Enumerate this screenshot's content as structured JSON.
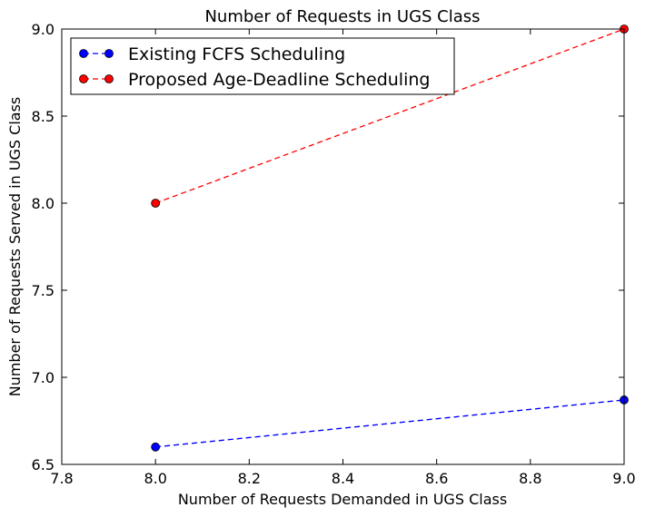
{
  "chart_data": {
    "type": "line",
    "title": "Number of Requests in UGS Class",
    "xlabel": "Number of Requests Demanded in UGS Class",
    "ylabel": "Number of Requests Served in UGS Class",
    "xlim": [
      7.8,
      9.0
    ],
    "ylim": [
      6.5,
      9.0
    ],
    "x_ticks": [
      "7.8",
      "8.0",
      "8.2",
      "8.4",
      "8.6",
      "8.8",
      "9.0"
    ],
    "y_ticks": [
      "6.5",
      "7.0",
      "7.5",
      "8.0",
      "8.5",
      "9.0"
    ],
    "grid": false,
    "legend_position": "top-left",
    "series": [
      {
        "name": "Existing FCFS Scheduling",
        "color": "#0000ff",
        "line_style": "dashed",
        "marker": "circle",
        "points": [
          {
            "x": 8.0,
            "y": 6.6
          },
          {
            "x": 9.0,
            "y": 6.87
          }
        ]
      },
      {
        "name": "Proposed Age-Deadline Scheduling",
        "color": "#ff0000",
        "line_style": "dashed",
        "marker": "circle",
        "points": [
          {
            "x": 8.0,
            "y": 8.0
          },
          {
            "x": 9.0,
            "y": 9.0
          }
        ]
      }
    ]
  }
}
